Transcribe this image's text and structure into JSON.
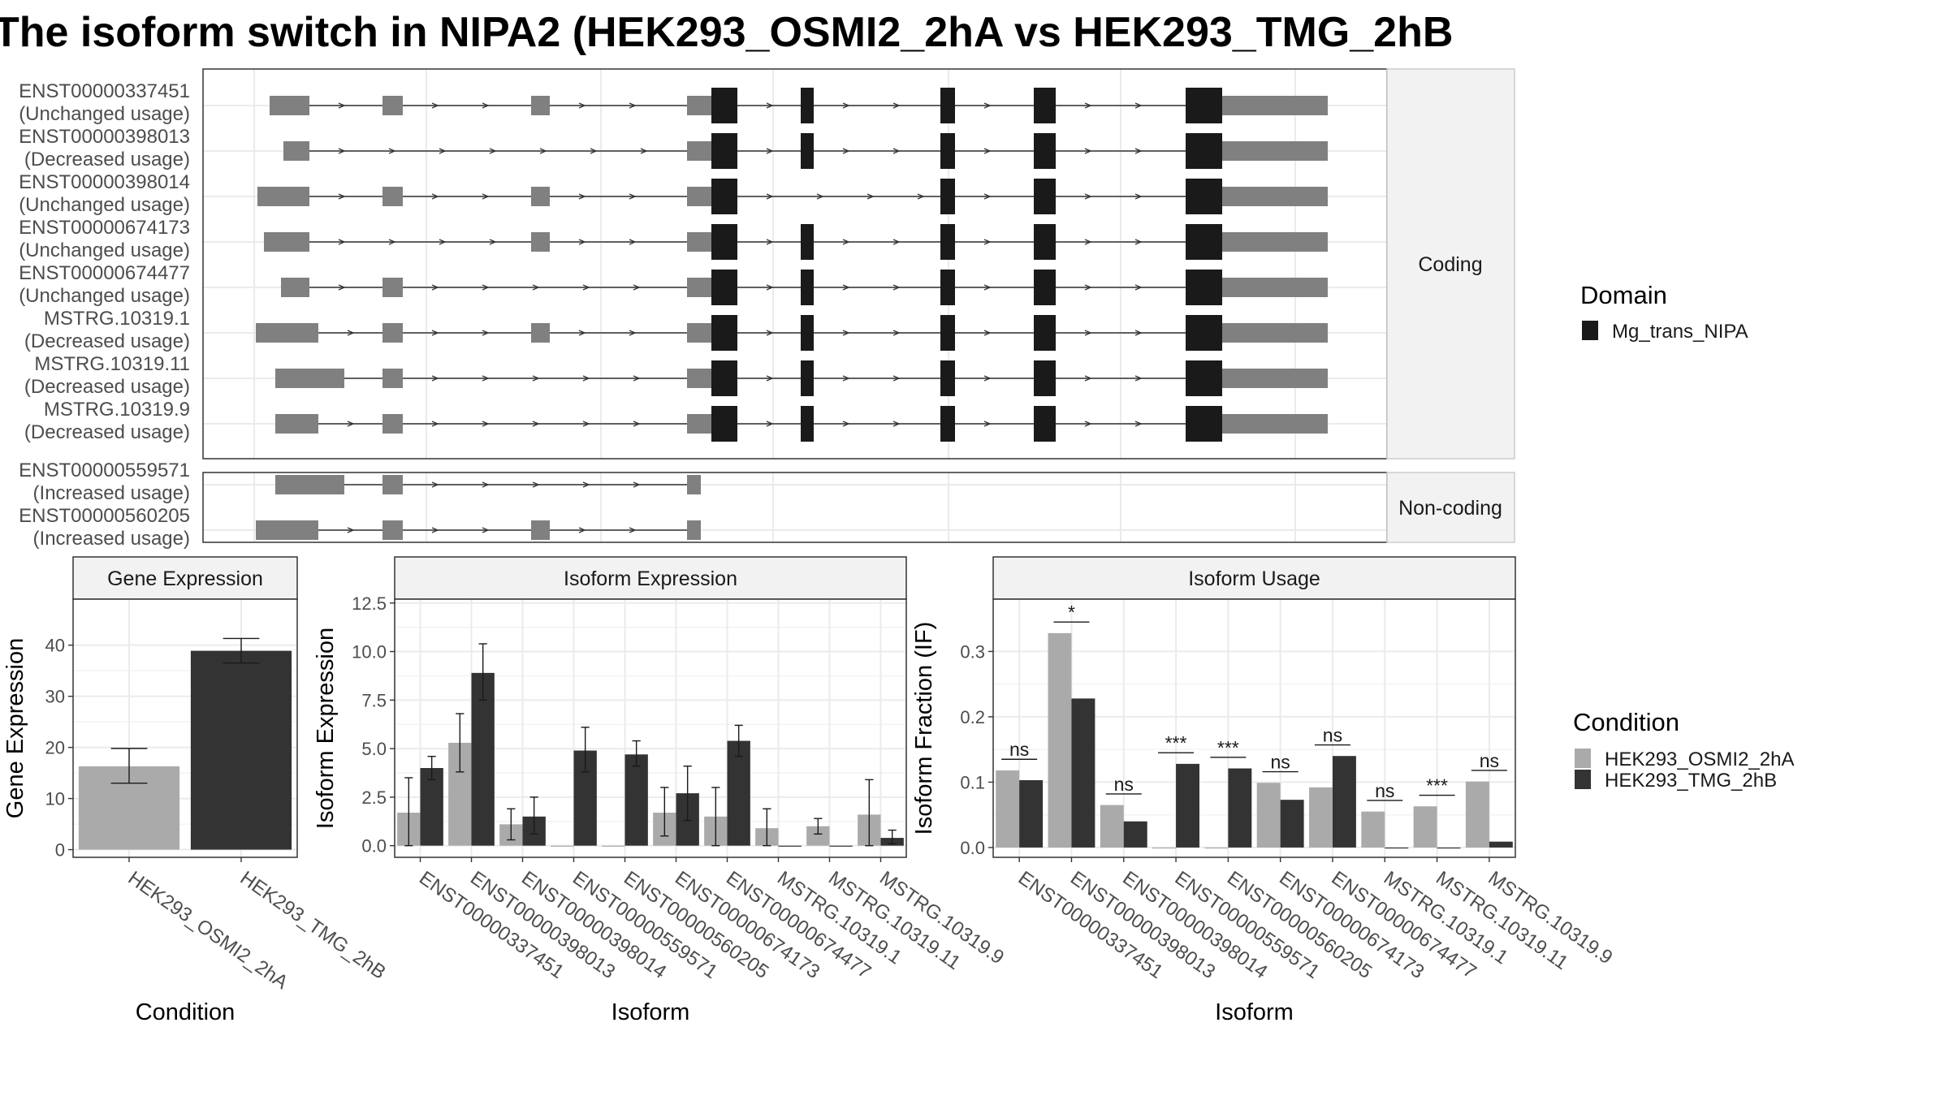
{
  "title": "The isoform switch in NIPA2 (HEK293_OSMI2_2hA vs HEK293_TMG_2hB",
  "colors": {
    "exon_utr": "#808080",
    "exon_domain": "#1a1a1a",
    "intron": "#333333",
    "cond_a": "#aaaaaa",
    "cond_b": "#333333",
    "grid": "#ebebeb",
    "panel_border": "#333333",
    "strip_fill": "#f2f2f2"
  },
  "structure": {
    "facet_coding": "Coding",
    "facet_noncoding": "Non-coding",
    "legend_title": "Domain",
    "legend_item": "Mg_trans_NIPA",
    "coding": [
      {
        "name": "ENST00000337451",
        "usage": "(Unchanged usage)",
        "pattern": "A"
      },
      {
        "name": "ENST00000398013",
        "usage": "(Decreased usage)",
        "pattern": "B"
      },
      {
        "name": "ENST00000398014",
        "usage": "(Unchanged usage)",
        "pattern": "C"
      },
      {
        "name": "ENST00000674173",
        "usage": "(Unchanged usage)",
        "pattern": "D"
      },
      {
        "name": "ENST00000674477",
        "usage": "(Unchanged usage)",
        "pattern": "E"
      },
      {
        "name": "MSTRG.10319.1",
        "usage": "(Decreased usage)",
        "pattern": "F"
      },
      {
        "name": "MSTRG.10319.11",
        "usage": "(Decreased usage)",
        "pattern": "G"
      },
      {
        "name": "MSTRG.10319.9",
        "usage": "(Decreased usage)",
        "pattern": "H"
      }
    ],
    "noncoding": [
      {
        "name": "ENST00000559571",
        "usage": "(Increased usage)",
        "pattern": "NC1"
      },
      {
        "name": "ENST00000560205",
        "usage": "(Increased usage)",
        "pattern": "NC2"
      }
    ]
  },
  "chart_data": [
    {
      "type": "bar",
      "title": "Gene Expression",
      "xlabel": "Condition",
      "ylabel": "Gene Expression",
      "categories": [
        "HEK293_OSMI2_2hA",
        "HEK293_TMG_2hB"
      ],
      "values": [
        16.3,
        38.9
      ],
      "error_low": [
        13.0,
        36.5
      ],
      "error_high": [
        19.8,
        41.3
      ],
      "ylim": [
        -1.5,
        49
      ],
      "yticks": [
        0,
        10,
        20,
        30,
        40
      ]
    },
    {
      "type": "bar",
      "title": "Isoform Expression",
      "xlabel": "Isoform",
      "ylabel": "Isoform Expression",
      "categories": [
        "ENST00000337451",
        "ENST00000398013",
        "ENST00000398014",
        "ENST00000559571",
        "ENST00000560205",
        "ENST00000674173",
        "ENST00000674477",
        "MSTRG.10319.1",
        "MSTRG.10319.11",
        "MSTRG.10319.9"
      ],
      "ylim": [
        -0.6,
        12.7
      ],
      "yticks": [
        0.0,
        2.5,
        5.0,
        7.5,
        10.0,
        12.5
      ],
      "series": [
        {
          "name": "HEK293_OSMI2_2hA",
          "values": [
            1.7,
            5.3,
            1.1,
            0.0,
            0.0,
            1.7,
            1.5,
            0.9,
            1.0,
            1.6
          ],
          "error_low": [
            0.0,
            3.8,
            0.3,
            0.0,
            0.0,
            0.5,
            0.0,
            0.0,
            0.6,
            0.0
          ],
          "error_high": [
            3.5,
            6.8,
            1.9,
            0.0,
            0.0,
            3.0,
            3.0,
            1.9,
            1.4,
            3.4
          ]
        },
        {
          "name": "HEK293_TMG_2hB",
          "values": [
            4.0,
            8.9,
            1.5,
            4.9,
            4.7,
            2.7,
            5.4,
            0.0,
            0.0,
            0.4
          ],
          "error_low": [
            3.4,
            7.5,
            0.6,
            3.8,
            4.1,
            1.3,
            4.6,
            0.0,
            0.0,
            0.1
          ],
          "error_high": [
            4.6,
            10.4,
            2.5,
            6.1,
            5.4,
            4.1,
            6.2,
            0.0,
            0.0,
            0.8
          ]
        }
      ]
    },
    {
      "type": "bar",
      "title": "Isoform Usage",
      "xlabel": "Isoform",
      "ylabel": "Isoform Fraction (IF)",
      "categories": [
        "ENST00000337451",
        "ENST00000398013",
        "ENST00000398014",
        "ENST00000559571",
        "ENST00000560205",
        "ENST00000674173",
        "ENST00000674477",
        "MSTRG.10319.1",
        "MSTRG.10319.11",
        "MSTRG.10319.9"
      ],
      "ylim": [
        -0.015,
        0.38
      ],
      "yticks": [
        0.0,
        0.1,
        0.2,
        0.3
      ],
      "series": [
        {
          "name": "HEK293_OSMI2_2hA",
          "values": [
            0.118,
            0.328,
            0.065,
            0.0,
            0.0,
            0.099,
            0.092,
            0.055,
            0.063,
            0.101
          ]
        },
        {
          "name": "HEK293_TMG_2hB",
          "values": [
            0.103,
            0.228,
            0.04,
            0.128,
            0.121,
            0.073,
            0.14,
            0.0,
            0.0,
            0.009
          ]
        }
      ],
      "significance": [
        "ns",
        "*",
        "ns",
        "***",
        "***",
        "ns",
        "ns",
        "ns",
        "***",
        "ns"
      ],
      "significance_y": [
        0.135,
        0.345,
        0.082,
        0.145,
        0.138,
        0.116,
        0.157,
        0.072,
        0.08,
        0.118
      ]
    }
  ],
  "condition_legend": {
    "title": "Condition",
    "items": [
      "HEK293_OSMI2_2hA",
      "HEK293_TMG_2hB"
    ]
  }
}
